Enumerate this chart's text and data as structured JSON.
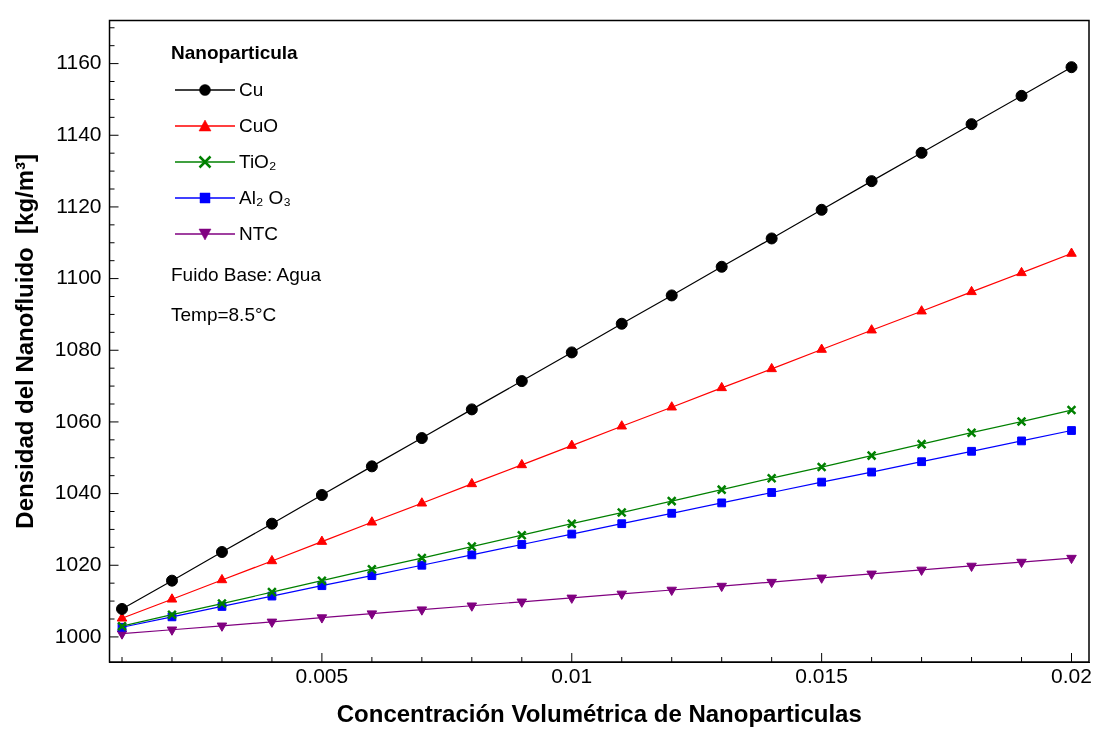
{
  "chart_data": {
    "type": "line",
    "xlabel": "Concentración Volumétrica de Nanoparticulas",
    "ylabel": "Densidad del Nanofluido  [kg/m³]",
    "legend_title": "Nanoparticula",
    "legend": "top left",
    "grid": false,
    "annotations": [
      "Fuido Base: Agua",
      "Temp=8.5°C"
    ],
    "x": [
      0.001,
      0.002,
      0.003,
      0.004,
      0.005,
      0.006,
      0.007,
      0.008,
      0.009,
      0.01,
      0.011,
      0.012,
      0.013,
      0.014,
      0.015,
      0.016,
      0.017,
      0.018,
      0.019,
      0.02
    ],
    "xlim": [
      0.00075,
      0.02035
    ],
    "xticks": [
      {
        "value": 0.001,
        "label": null
      },
      {
        "value": 0.002,
        "label": null
      },
      {
        "value": 0.003,
        "label": null
      },
      {
        "value": 0.004,
        "label": null
      },
      0.005,
      {
        "value": 0.006,
        "label": null
      },
      {
        "value": 0.007,
        "label": null
      },
      {
        "value": 0.008,
        "label": null
      },
      {
        "value": 0.009,
        "label": null
      },
      0.01,
      {
        "value": 0.011,
        "label": null
      },
      {
        "value": 0.012,
        "label": null
      },
      {
        "value": 0.013,
        "label": null
      },
      {
        "value": 0.014,
        "label": null
      },
      0.015,
      {
        "value": 0.016,
        "label": null
      },
      {
        "value": 0.017,
        "label": null
      },
      {
        "value": 0.018,
        "label": null
      },
      {
        "value": 0.019,
        "label": null
      },
      0.02
    ],
    "ylim": [
      993,
      1172
    ],
    "yticks": [
      1000,
      {
        "value": 1005,
        "label": null
      },
      {
        "value": 1010,
        "label": null
      },
      {
        "value": 1015,
        "label": null
      },
      1020,
      {
        "value": 1025,
        "label": null
      },
      {
        "value": 1030,
        "label": null
      },
      {
        "value": 1035,
        "label": null
      },
      1040,
      {
        "value": 1045,
        "label": null
      },
      {
        "value": 1050,
        "label": null
      },
      {
        "value": 1055,
        "label": null
      },
      1060,
      {
        "value": 1065,
        "label": null
      },
      {
        "value": 1070,
        "label": null
      },
      {
        "value": 1075,
        "label": null
      },
      1080,
      {
        "value": 1085,
        "label": null
      },
      {
        "value": 1090,
        "label": null
      },
      {
        "value": 1095,
        "label": null
      },
      1100,
      {
        "value": 1105,
        "label": null
      },
      {
        "value": 1110,
        "label": null
      },
      {
        "value": 1115,
        "label": null
      },
      1120,
      {
        "value": 1125,
        "label": null
      },
      {
        "value": 1130,
        "label": null
      },
      {
        "value": 1135,
        "label": null
      },
      1140,
      {
        "value": 1145,
        "label": null
      },
      {
        "value": 1150,
        "label": null
      },
      {
        "value": 1155,
        "label": null
      },
      1160,
      {
        "value": 1165,
        "label": null
      },
      {
        "value": 1170,
        "label": null
      }
    ],
    "series": [
      {
        "name": "Cu",
        "color": "#000000",
        "marker": "circle",
        "values": [
          1007.8,
          1015.7,
          1023.7,
          1031.6,
          1039.6,
          1047.6,
          1055.5,
          1063.5,
          1071.4,
          1079.4,
          1087.4,
          1095.3,
          1103.3,
          1111.2,
          1119.2,
          1127.2,
          1135.1,
          1143.1,
          1151.0,
          1159.0
        ]
      },
      {
        "name": "CuO",
        "color": "#ff0000",
        "marker": "triangle",
        "values": [
          1005.2,
          1010.5,
          1015.9,
          1021.2,
          1026.6,
          1032.0,
          1037.3,
          1042.7,
          1048.0,
          1053.4,
          1058.8,
          1064.1,
          1069.5,
          1074.8,
          1080.2,
          1085.6,
          1090.9,
          1096.3,
          1101.6,
          1107.0
        ]
      },
      {
        "name": "TiO₂",
        "color": "#008000",
        "marker": "cross",
        "values": [
          1003.0,
          1006.2,
          1009.3,
          1012.5,
          1015.7,
          1018.9,
          1022.0,
          1025.2,
          1028.4,
          1031.6,
          1034.7,
          1037.9,
          1041.1,
          1044.3,
          1047.4,
          1050.6,
          1053.8,
          1057.0,
          1060.1,
          1063.3
        ]
      },
      {
        "name": "Al₂ O₃",
        "color": "#0000ff",
        "marker": "square",
        "values": [
          1002.7,
          1005.6,
          1008.5,
          1011.4,
          1014.3,
          1017.1,
          1020.0,
          1022.9,
          1025.8,
          1028.7,
          1031.6,
          1034.5,
          1037.4,
          1040.3,
          1043.2,
          1046.0,
          1048.9,
          1051.8,
          1054.7,
          1057.6
        ]
      },
      {
        "name": "NTC",
        "color": "#800080",
        "marker": "triangle-down",
        "values": [
          1000.9,
          1002.0,
          1003.1,
          1004.2,
          1005.4,
          1006.5,
          1007.6,
          1008.7,
          1009.8,
          1010.9,
          1012.0,
          1013.1,
          1014.2,
          1015.3,
          1016.5,
          1017.6,
          1018.7,
          1019.8,
          1020.9,
          1022.0
        ]
      }
    ]
  }
}
